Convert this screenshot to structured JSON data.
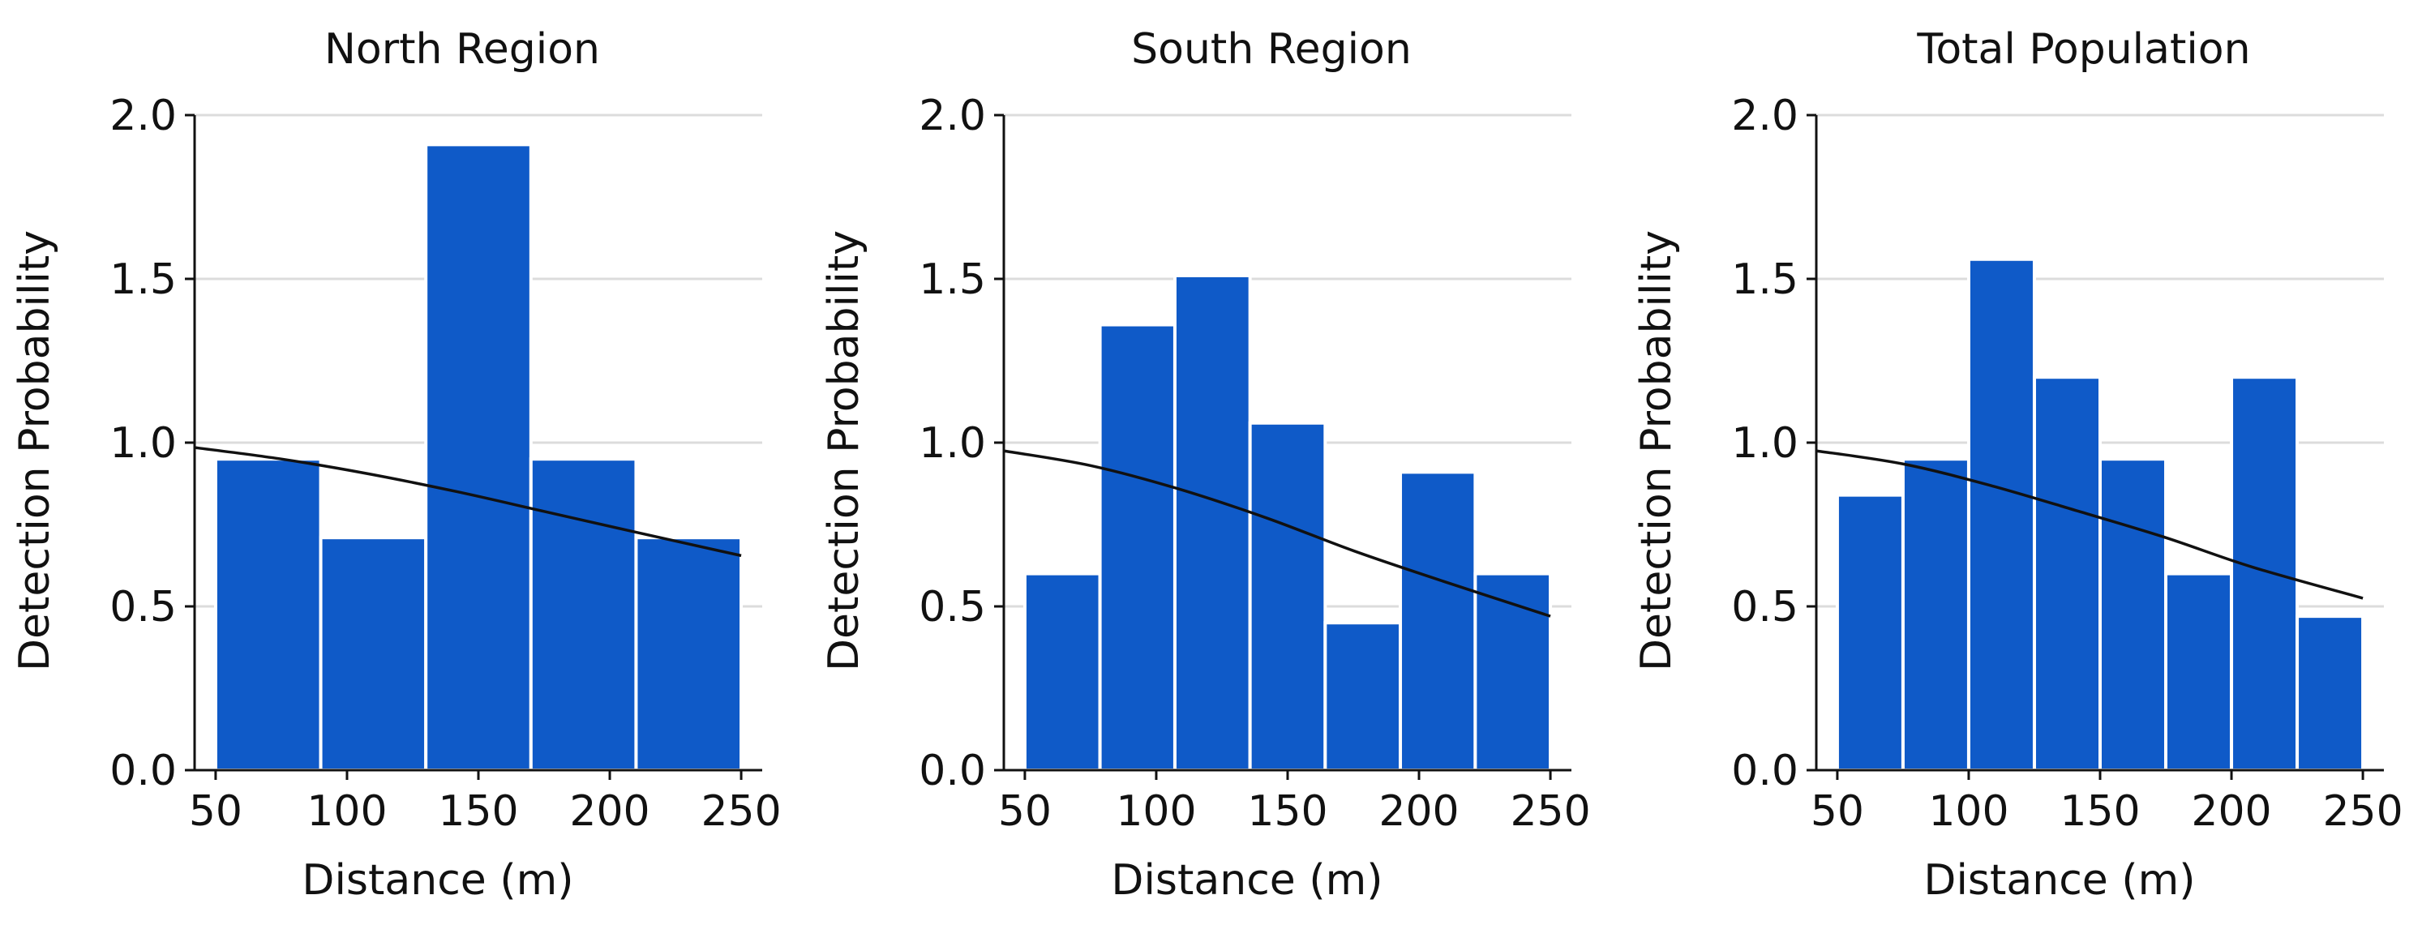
{
  "chart_data": [
    {
      "type": "bar",
      "title": "North Region",
      "xlabel": "Distance (m)",
      "ylabel": "Detection Probability",
      "xlim": [
        42,
        258
      ],
      "ylim": [
        0,
        2.0
      ],
      "xticks": [
        50,
        100,
        150,
        200,
        250
      ],
      "yticks": [
        0.0,
        0.5,
        1.0,
        1.5,
        2.0
      ],
      "ytick_labels": [
        "0.0",
        "0.5",
        "1.0",
        "1.5",
        "2.0"
      ],
      "grid": true,
      "bar_color": "#0f5ac8",
      "curve_color": "#111111",
      "bins": [
        [
          50,
          90
        ],
        [
          90,
          130
        ],
        [
          130,
          170
        ],
        [
          170,
          210
        ],
        [
          210,
          250
        ]
      ],
      "values": [
        0.95,
        0.71,
        1.91,
        0.95,
        0.71
      ],
      "curve": {
        "x": [
          42,
          75,
          108,
          142,
          175,
          208,
          250
        ],
        "y": [
          0.985,
          0.95,
          0.905,
          0.85,
          0.79,
          0.73,
          0.655
        ]
      }
    },
    {
      "type": "bar",
      "title": "South Region",
      "xlabel": "Distance (m)",
      "ylabel": "Detection Probability",
      "xlim": [
        42,
        258
      ],
      "ylim": [
        0,
        2.0
      ],
      "xticks": [
        50,
        100,
        150,
        200,
        250
      ],
      "yticks": [
        0.0,
        0.5,
        1.0,
        1.5,
        2.0
      ],
      "ytick_labels": [
        "0.0",
        "0.5",
        "1.0",
        "1.5",
        "2.0"
      ],
      "grid": true,
      "bar_color": "#0f5ac8",
      "curve_color": "#111111",
      "bins": [
        [
          50,
          78.6
        ],
        [
          78.6,
          107.1
        ],
        [
          107.1,
          135.7
        ],
        [
          135.7,
          164.3
        ],
        [
          164.3,
          192.9
        ],
        [
          192.9,
          221.4
        ],
        [
          221.4,
          250
        ]
      ],
      "values": [
        0.6,
        1.36,
        1.51,
        1.06,
        0.45,
        0.91,
        0.6
      ],
      "curve": {
        "x": [
          42,
          75,
          108,
          142,
          175,
          208,
          250
        ],
        "y": [
          0.975,
          0.93,
          0.86,
          0.77,
          0.67,
          0.58,
          0.47
        ]
      }
    },
    {
      "type": "bar",
      "title": "Total Population",
      "xlabel": "Distance (m)",
      "ylabel": "Detection Probability",
      "xlim": [
        42,
        258
      ],
      "ylim": [
        0,
        2.0
      ],
      "xticks": [
        50,
        100,
        150,
        200,
        250
      ],
      "yticks": [
        0.0,
        0.5,
        1.0,
        1.5,
        2.0
      ],
      "ytick_labels": [
        "0.0",
        "0.5",
        "1.0",
        "1.5",
        "2.0"
      ],
      "grid": true,
      "bar_color": "#0f5ac8",
      "curve_color": "#111111",
      "bins": [
        [
          50,
          75
        ],
        [
          75,
          100
        ],
        [
          100,
          125
        ],
        [
          125,
          150
        ],
        [
          150,
          175
        ],
        [
          175,
          200
        ],
        [
          200,
          225
        ],
        [
          225,
          250
        ]
      ],
      "values": [
        0.84,
        0.95,
        1.56,
        1.2,
        0.95,
        0.6,
        1.2,
        0.47
      ],
      "curve": {
        "x": [
          42,
          75,
          108,
          142,
          175,
          208,
          250
        ],
        "y": [
          0.975,
          0.935,
          0.87,
          0.79,
          0.71,
          0.62,
          0.525
        ]
      }
    }
  ]
}
